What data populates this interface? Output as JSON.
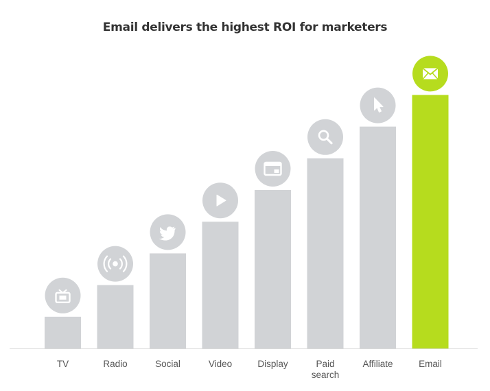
{
  "chart_data": {
    "type": "bar",
    "title": "Email delivers the highest ROI for marketers",
    "xlabel": "",
    "ylabel": "",
    "categories": [
      [
        "TV"
      ],
      [
        "Radio"
      ],
      [
        "Social"
      ],
      [
        "Video"
      ],
      [
        "Display"
      ],
      [
        "Paid",
        "search"
      ],
      [
        "Affiliate"
      ],
      [
        "Email"
      ]
    ],
    "values": [
      1,
      2,
      3,
      4,
      5,
      6,
      7,
      8
    ],
    "ylim": [
      0,
      8
    ],
    "grid": false,
    "legend": "none",
    "icons": [
      "tv-icon",
      "radio-broadcast-icon",
      "twitter-bird-icon",
      "play-icon",
      "browser-window-icon",
      "search-icon",
      "cursor-pointer-icon",
      "envelope-icon"
    ],
    "highlight_index": 7,
    "colors": {
      "bar": "#d1d3d6",
      "highlight": "#b6dc1e",
      "icon_glyph": "#ffffff",
      "axis": "#d9d9d9",
      "title": "#333333",
      "tick_label": "#555555"
    }
  }
}
